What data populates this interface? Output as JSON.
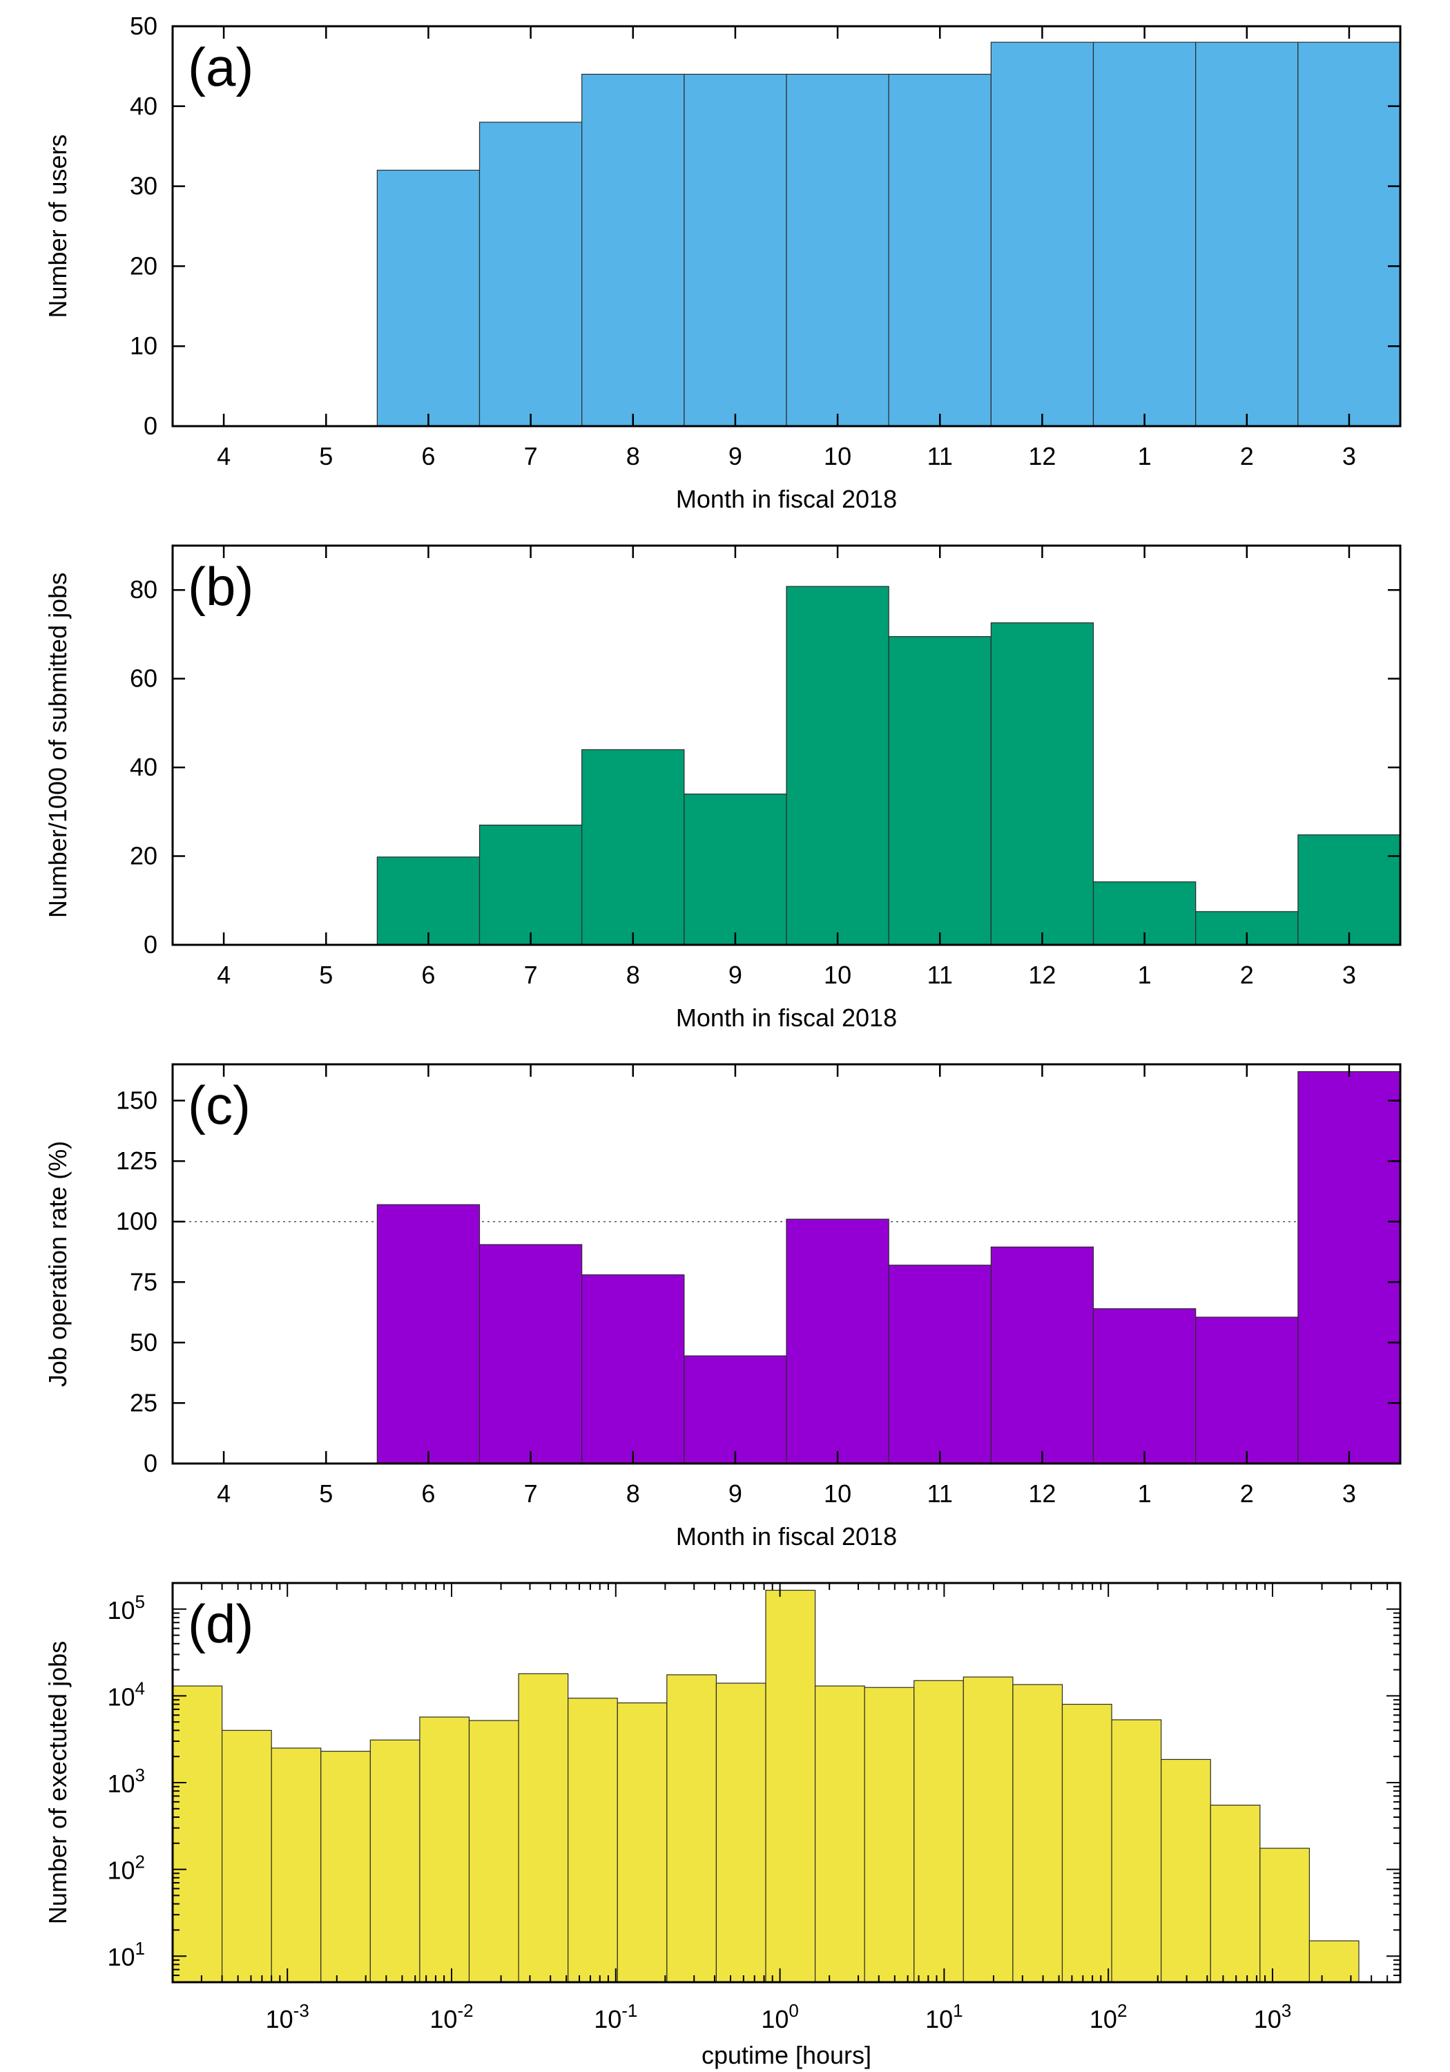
{
  "chart_data": [
    {
      "type": "bar",
      "panel_label": "(a)",
      "xlabel": "Month in fiscal 2018",
      "ylabel": "Number of users",
      "ylim": [
        0,
        50
      ],
      "yticks": [
        0,
        10,
        20,
        30,
        40,
        50
      ],
      "categories": [
        "4",
        "5",
        "6",
        "7",
        "8",
        "9",
        "10",
        "11",
        "12",
        "1",
        "2",
        "3"
      ],
      "values": [
        0,
        0,
        32,
        38,
        44,
        44,
        44,
        44,
        48,
        48,
        48,
        48
      ],
      "color": "#56b4e9"
    },
    {
      "type": "bar",
      "panel_label": "(b)",
      "xlabel": "Month in fiscal 2018",
      "ylabel": "Number/1000 of submitted jobs",
      "ylim": [
        0,
        90
      ],
      "yticks": [
        0,
        20,
        40,
        60,
        80
      ],
      "categories": [
        "4",
        "5",
        "6",
        "7",
        "8",
        "9",
        "10",
        "11",
        "12",
        "1",
        "2",
        "3"
      ],
      "values": [
        0,
        0,
        19.8,
        27,
        44,
        34,
        80.8,
        69.5,
        72.6,
        14.2,
        7.5,
        24.8
      ],
      "color": "#009e73"
    },
    {
      "type": "bar",
      "panel_label": "(c)",
      "xlabel": "Month in fiscal 2018",
      "ylabel": "Job operation rate (%)",
      "ylim": [
        0,
        165
      ],
      "yticks": [
        0,
        25,
        50,
        75,
        100,
        125,
        150
      ],
      "reference_line": 100,
      "categories": [
        "4",
        "5",
        "6",
        "7",
        "8",
        "9",
        "10",
        "11",
        "12",
        "1",
        "2",
        "3"
      ],
      "values": [
        0,
        0,
        107,
        90.5,
        78,
        44.5,
        101,
        82,
        89.5,
        64,
        60.5,
        162
      ],
      "color": "#9400d3"
    },
    {
      "type": "bar",
      "panel_label": "(d)",
      "xlabel": "cputime [hours]",
      "ylabel": "Number of exectuted jobs",
      "xscale": "log",
      "yscale": "log",
      "xlim": [
        0.0002,
        6000
      ],
      "ylim": [
        5,
        200000
      ],
      "xtick_labels": [
        {
          "value": 0.001,
          "base": "10",
          "exp": "-3"
        },
        {
          "value": 0.01,
          "base": "10",
          "exp": "-2"
        },
        {
          "value": 0.1,
          "base": "10",
          "exp": "-1"
        },
        {
          "value": 1,
          "base": "10",
          "exp": "0"
        },
        {
          "value": 10,
          "base": "10",
          "exp": "1"
        },
        {
          "value": 100,
          "base": "10",
          "exp": "2"
        },
        {
          "value": 1000,
          "base": "10",
          "exp": "3"
        }
      ],
      "ytick_labels": [
        {
          "value": 10,
          "base": "10",
          "exp": "1"
        },
        {
          "value": 100,
          "base": "10",
          "exp": "2"
        },
        {
          "value": 1000,
          "base": "10",
          "exp": "3"
        },
        {
          "value": 10000,
          "base": "10",
          "exp": "4"
        },
        {
          "value": 100000,
          "base": "10",
          "exp": "5"
        }
      ],
      "bins": [
        {
          "x0": 0.0002,
          "x1": 0.0004,
          "count": 13000
        },
        {
          "x0": 0.0004,
          "x1": 0.0008,
          "count": 4000
        },
        {
          "x0": 0.0008,
          "x1": 0.0016,
          "count": 2500
        },
        {
          "x0": 0.0016,
          "x1": 0.0032,
          "count": 2300
        },
        {
          "x0": 0.0032,
          "x1": 0.0064,
          "count": 3100
        },
        {
          "x0": 0.0064,
          "x1": 0.0128,
          "count": 5700
        },
        {
          "x0": 0.0128,
          "x1": 0.0256,
          "count": 5200
        },
        {
          "x0": 0.0256,
          "x1": 0.0512,
          "count": 18000
        },
        {
          "x0": 0.0512,
          "x1": 0.1024,
          "count": 9400
        },
        {
          "x0": 0.1024,
          "x1": 0.2048,
          "count": 8300
        },
        {
          "x0": 0.2048,
          "x1": 0.4096,
          "count": 17500
        },
        {
          "x0": 0.4096,
          "x1": 0.8192,
          "count": 14000
        },
        {
          "x0": 0.8192,
          "x1": 1.6384,
          "count": 165000
        },
        {
          "x0": 1.6384,
          "x1": 3.2768,
          "count": 13000
        },
        {
          "x0": 3.2768,
          "x1": 6.5536,
          "count": 12500
        },
        {
          "x0": 6.5536,
          "x1": 13.1072,
          "count": 15000
        },
        {
          "x0": 13.1072,
          "x1": 26.2144,
          "count": 16500
        },
        {
          "x0": 26.2144,
          "x1": 52.4288,
          "count": 13500
        },
        {
          "x0": 52.4288,
          "x1": 104.8576,
          "count": 8000
        },
        {
          "x0": 104.8576,
          "x1": 209.7152,
          "count": 5300
        },
        {
          "x0": 209.7152,
          "x1": 419.4304,
          "count": 1850
        },
        {
          "x0": 419.4304,
          "x1": 838.8608,
          "count": 550
        },
        {
          "x0": 838.8608,
          "x1": 1677.7216,
          "count": 175
        },
        {
          "x0": 1677.7216,
          "x1": 3355.4432,
          "count": 15
        }
      ],
      "color": "#f0e442"
    }
  ]
}
